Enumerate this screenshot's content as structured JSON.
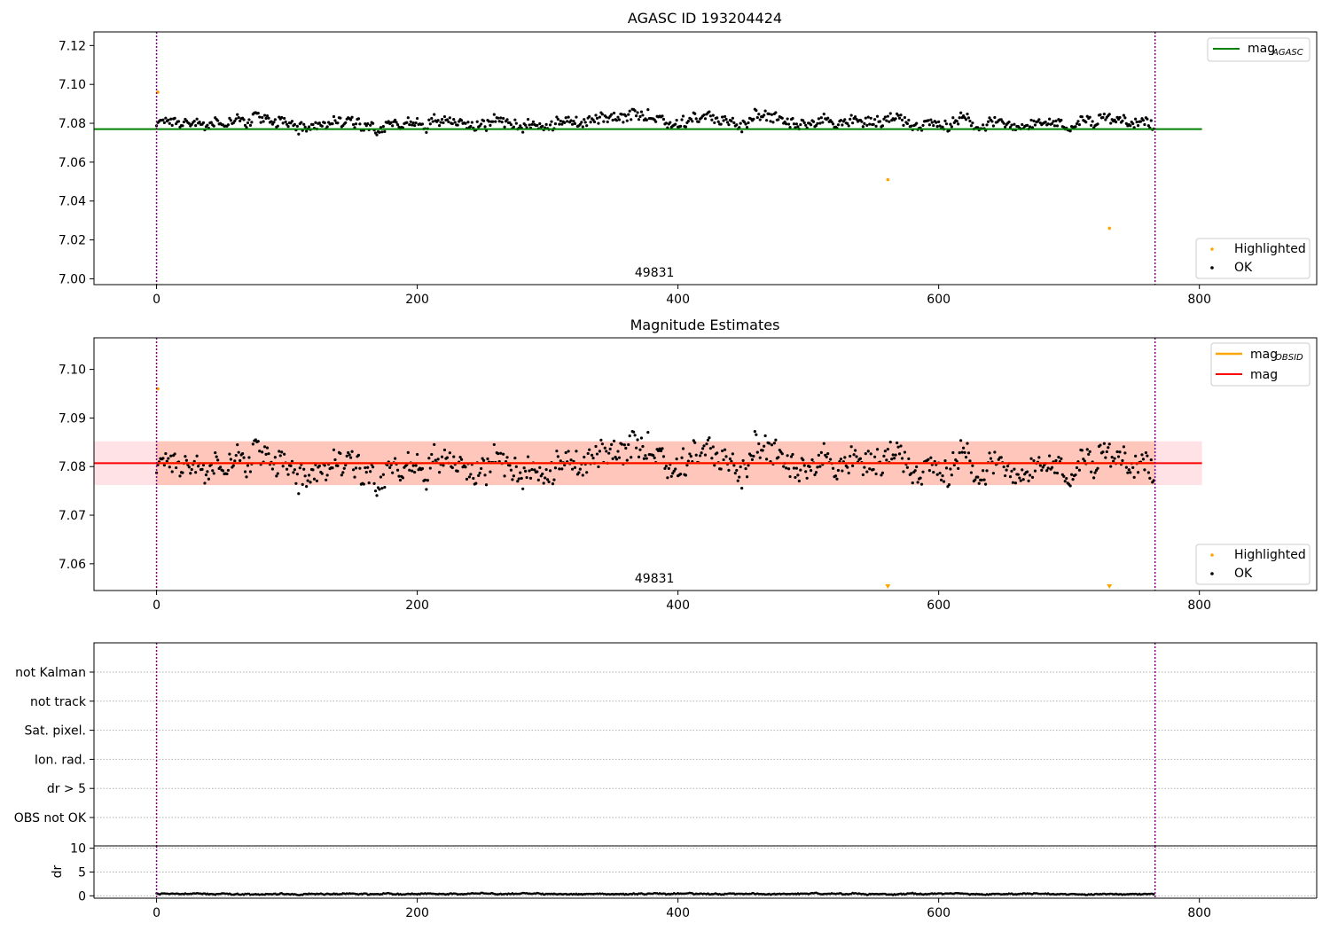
{
  "colors": {
    "ok_points": "#000000",
    "highlighted": "#ffa500",
    "agasc_line": "#008000",
    "mean_line": "#ff0000",
    "obsid_line": "#ffa500",
    "band_outer": "#ffb6c1",
    "band_inner": "#ffa07a",
    "obs_boundary": "#800080",
    "grid": "#b0b0b0"
  },
  "chart_data": [
    {
      "type": "scatter",
      "title": "AGASC ID 193204424",
      "xlim": [
        -48,
        890
      ],
      "ylim": [
        6.997,
        7.127
      ],
      "x_ticks": [
        "0",
        "200",
        "400",
        "600",
        "800"
      ],
      "y_ticks": [
        "7.00",
        "7.02",
        "7.04",
        "7.06",
        "7.08",
        "7.10",
        "7.12"
      ],
      "obs_label": "49831",
      "obs_label_x": 382,
      "obs_boundaries": [
        0,
        766
      ],
      "reference_line": {
        "name_main": "mag",
        "name_sub": "AGASC",
        "value": 7.077,
        "x_range": [
          -48,
          802
        ]
      },
      "legend_lines": [
        {
          "main": "mag",
          "sub": "AGASC"
        }
      ],
      "legend_points": [
        "Highlighted",
        "OK"
      ],
      "ok_points": {
        "n": 766,
        "x_range": [
          0,
          765
        ],
        "baseline": 7.081,
        "noise": 0.003,
        "min": 7.07,
        "max": 7.092
      },
      "highlighted_points": [
        {
          "x": 1,
          "y": 7.096
        },
        {
          "x": 561,
          "y": 7.051
        },
        {
          "x": 731,
          "y": 7.026
        }
      ]
    },
    {
      "type": "scatter",
      "title": "Magnitude Estimates",
      "xlim": [
        -48,
        890
      ],
      "ylim": [
        7.0545,
        7.1065
      ],
      "x_ticks": [
        "0",
        "200",
        "400",
        "600",
        "800"
      ],
      "y_ticks": [
        "7.06",
        "7.07",
        "7.08",
        "7.09",
        "7.10"
      ],
      "obs_label": "49831",
      "obs_label_x": 382,
      "obs_boundaries": [
        0,
        766
      ],
      "mean_line": {
        "name": "mag",
        "value": 7.0807,
        "x_range": [
          -48,
          802
        ]
      },
      "obsid_line": {
        "name_main": "mag",
        "name_sub": "OBSID",
        "value": 7.0807,
        "x_range": [
          0,
          766
        ]
      },
      "band_outer": {
        "low": 7.0762,
        "high": 7.0852,
        "x_range": [
          -48,
          802
        ]
      },
      "band_inner": {
        "low": 7.0762,
        "high": 7.0852,
        "x_range": [
          0,
          766
        ]
      },
      "legend_lines": [
        {
          "main": "mag",
          "sub": "OBSID"
        },
        {
          "main": "mag",
          "sub": ""
        }
      ],
      "legend_points": [
        "Highlighted",
        "OK"
      ],
      "ok_points": {
        "n": 766,
        "x_range": [
          0,
          765
        ],
        "baseline": 7.081,
        "noise": 0.003,
        "min": 7.07,
        "max": 7.092
      },
      "highlighted_points": [
        {
          "x": 1,
          "y": 7.096
        }
      ],
      "offscale_markers": [
        {
          "x": 561
        },
        {
          "x": 731
        }
      ]
    },
    {
      "type": "scatter",
      "title": "",
      "xlim": [
        -48,
        890
      ],
      "categories": [
        "not Kalman",
        "not track",
        "Sat. pixel.",
        "Ion. rad.",
        "dr > 5",
        "OBS not OK"
      ],
      "obs_boundaries": [
        0,
        766
      ],
      "flags": {
        "not Kalman": 0,
        "not track": 0,
        "Sat. pixel.": 0,
        "Ion. rad.": 0,
        "dr > 5": 0,
        "OBS not OK": 0
      }
    },
    {
      "type": "scatter",
      "title": "",
      "xlim": [
        -48,
        890
      ],
      "ylim": [
        -0.5,
        10.5
      ],
      "ylabel": "dr",
      "x_ticks": [
        "0",
        "200",
        "400",
        "600",
        "800"
      ],
      "y_ticks": [
        "0",
        "5",
        "10"
      ],
      "obs_boundaries": [
        0,
        766
      ],
      "points": {
        "n": 766,
        "x_range": [
          0,
          765
        ],
        "baseline": 0.4,
        "noise": 0.12,
        "min": 0.1,
        "max": 1.1
      }
    }
  ]
}
